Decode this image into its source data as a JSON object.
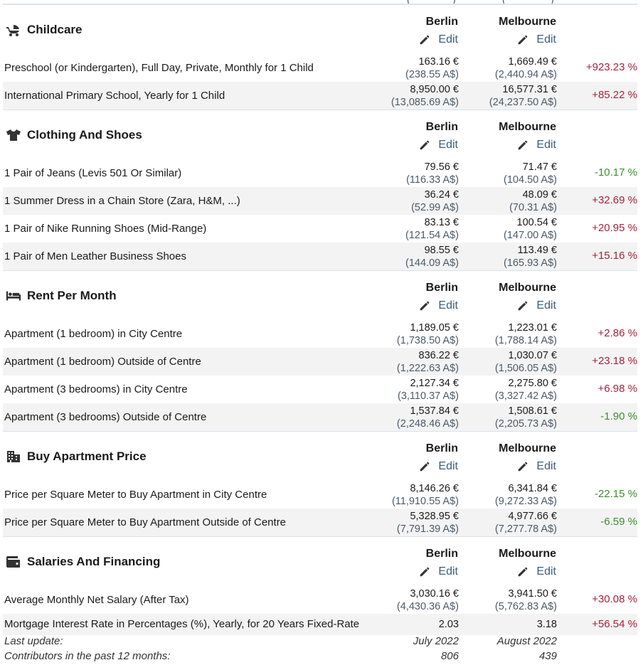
{
  "cities": [
    "Berlin",
    "Melbourne"
  ],
  "edit_label": "Edit",
  "top_fragments": [
    "(",
    ")",
    "(",
    ")"
  ],
  "sections": [
    {
      "title": "Childcare",
      "icon": "stroller-icon",
      "rows": [
        {
          "label": "Preschool (or Kindergarten), Full Day, Private, Monthly for 1 Child",
          "v1": "163.16 €",
          "a1": "(238.55 A$)",
          "v2": "1,669.49 €",
          "a2": "(2,440.94 A$)",
          "diff": "+923.23 %",
          "sign": "pos"
        },
        {
          "label": "International Primary School, Yearly for 1 Child",
          "v1": "8,950.00 €",
          "a1": "(13,085.69 A$)",
          "v2": "16,577.31 €",
          "a2": "(24,237.50 A$)",
          "diff": "+85.22 %",
          "sign": "pos"
        }
      ]
    },
    {
      "title": "Clothing And Shoes",
      "icon": "tshirt-icon",
      "rows": [
        {
          "label": "1 Pair of Jeans (Levis 501 Or Similar)",
          "v1": "79.56 €",
          "a1": "(116.33 A$)",
          "v2": "71.47 €",
          "a2": "(104.50 A$)",
          "diff": "-10.17 %",
          "sign": "neg"
        },
        {
          "label": "1 Summer Dress in a Chain Store (Zara, H&M, ...)",
          "v1": "36.24 €",
          "a1": "(52.99 A$)",
          "v2": "48.09 €",
          "a2": "(70.31 A$)",
          "diff": "+32.69 %",
          "sign": "pos"
        },
        {
          "label": "1 Pair of Nike Running Shoes (Mid-Range)",
          "v1": "83.13 €",
          "a1": "(121.54 A$)",
          "v2": "100.54 €",
          "a2": "(147.00 A$)",
          "diff": "+20.95 %",
          "sign": "pos"
        },
        {
          "label": "1 Pair of Men Leather Business Shoes",
          "v1": "98.55 €",
          "a1": "(144.09 A$)",
          "v2": "113.49 €",
          "a2": "(165.93 A$)",
          "diff": "+15.16 %",
          "sign": "pos"
        }
      ]
    },
    {
      "title": "Rent Per Month",
      "icon": "bed-icon",
      "rows": [
        {
          "label": "Apartment (1 bedroom) in City Centre",
          "v1": "1,189.05 €",
          "a1": "(1,738.50 A$)",
          "v2": "1,223.01 €",
          "a2": "(1,788.14 A$)",
          "diff": "+2.86 %",
          "sign": "pos"
        },
        {
          "label": "Apartment (1 bedroom) Outside of Centre",
          "v1": "836.22 €",
          "a1": "(1,222.63 A$)",
          "v2": "1,030.07 €",
          "a2": "(1,506.05 A$)",
          "diff": "+23.18 %",
          "sign": "pos"
        },
        {
          "label": "Apartment (3 bedrooms) in City Centre",
          "v1": "2,127.34 €",
          "a1": "(3,110.37 A$)",
          "v2": "2,275.80 €",
          "a2": "(3,327.42 A$)",
          "diff": "+6.98 %",
          "sign": "pos"
        },
        {
          "label": "Apartment (3 bedrooms) Outside of Centre",
          "v1": "1,537.84 €",
          "a1": "(2,248.46 A$)",
          "v2": "1,508.61 €",
          "a2": "(2,205.73 A$)",
          "diff": "-1.90 %",
          "sign": "neg"
        }
      ]
    },
    {
      "title": "Buy Apartment Price",
      "icon": "building-icon",
      "rows": [
        {
          "label": "Price per Square Meter to Buy Apartment in City Centre",
          "v1": "8,146.26 €",
          "a1": "(11,910.55 A$)",
          "v2": "6,341.84 €",
          "a2": "(9,272.33 A$)",
          "diff": "-22.15 %",
          "sign": "neg"
        },
        {
          "label": "Price per Square Meter to Buy Apartment Outside of Centre",
          "v1": "5,328.95 €",
          "a1": "(7,791.39 A$)",
          "v2": "4,977.66 €",
          "a2": "(7,277.78 A$)",
          "diff": "-6.59 %",
          "sign": "neg"
        }
      ]
    },
    {
      "title": "Salaries And Financing",
      "icon": "wallet-icon",
      "rows": [
        {
          "label": "Average Monthly Net Salary (After Tax)",
          "v1": "3,030.16 €",
          "a1": "(4,430.36 A$)",
          "v2": "3,941.50 €",
          "a2": "(5,762.83 A$)",
          "diff": "+30.08 %",
          "sign": "pos"
        },
        {
          "label": "Mortgage Interest Rate in Percentages (%), Yearly, for 20 Years Fixed-Rate",
          "v1": "2.03",
          "a1": "",
          "v2": "3.18",
          "a2": "",
          "diff": "+56.54 %",
          "sign": "pos",
          "short": true
        }
      ]
    }
  ],
  "footer": {
    "last_update_label": "Last update:",
    "last_update_1": "July 2022",
    "last_update_2": "August 2022",
    "contributors_label": "Contributors in the past 12 months:",
    "contributors_1": "806",
    "contributors_2": "439"
  },
  "colors": {
    "positive": "#a8223a",
    "negative": "#3c8e2c",
    "link": "#3a5f7e",
    "alt_row": "#f3f3f3"
  }
}
